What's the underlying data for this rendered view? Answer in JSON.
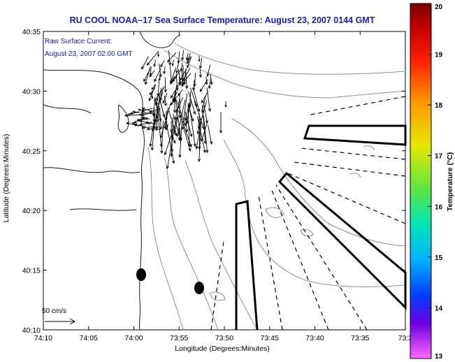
{
  "chart_data": {
    "type": "map",
    "title": "RU COOL  NOAA–17  Sea Surface Temperature:  August 23, 2007 0144 GMT",
    "annotation": [
      "Raw Surface Current:",
      "August 23, 2007 02:00 GMT"
    ],
    "xlabel": "Longitude (Degrees:Minutes)",
    "ylabel": "Latitude (Degrees:Minutes)",
    "x_ticks": [
      "74:10",
      "74:05",
      "74:00",
      "73:55",
      "73:50",
      "73:45",
      "73:40",
      "73:35",
      "73:3"
    ],
    "y_ticks": [
      "40:35",
      "40:30",
      "40:25",
      "40:20",
      "40:15",
      "40:10"
    ],
    "xlim_minutes": [
      -610,
      -570
    ],
    "ylim_minutes": [
      2410,
      2435
    ],
    "scale_label": "50 cm/s",
    "colorbar": {
      "label": "Temperature (°C)",
      "range": [
        13,
        20
      ],
      "ticks": [
        "20",
        "19",
        "18",
        "17",
        "16",
        "15",
        "14",
        "13"
      ]
    },
    "colors": {
      "title": "#1c1ca8",
      "annotation": "#1c1ca8",
      "contours": "#8a8a8a",
      "coast": "#1a1a1a"
    }
  }
}
